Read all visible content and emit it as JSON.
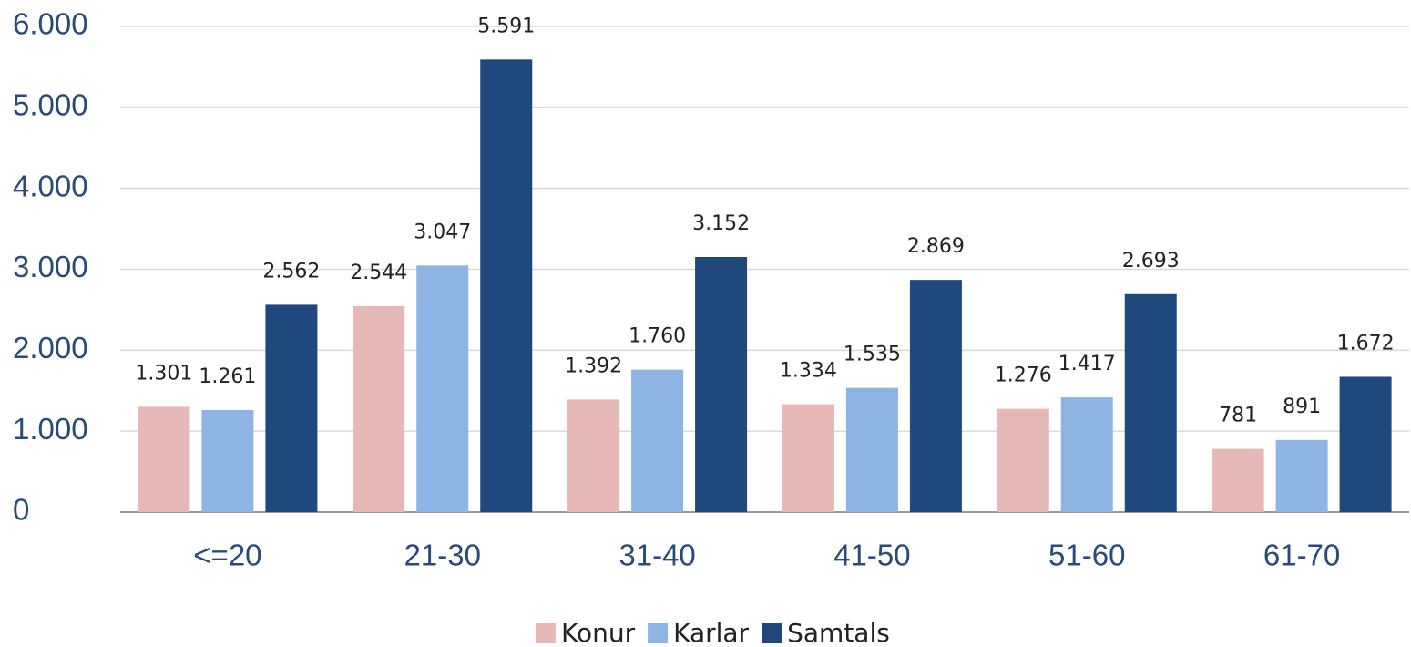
{
  "chart_data": {
    "type": "bar",
    "categories": [
      "<=20",
      "21-30",
      "31-40",
      "41-50",
      "51-60",
      "61-70"
    ],
    "series": [
      {
        "name": "Konur",
        "color": "#e6b8b7",
        "values": [
          1301,
          2544,
          1392,
          1334,
          1276,
          781
        ],
        "value_labels": [
          "1.301",
          "2.544",
          "1.392",
          "1.334",
          "1.276",
          "781"
        ]
      },
      {
        "name": "Karlar",
        "color": "#8db4e2",
        "values": [
          1261,
          3047,
          1760,
          1535,
          1417,
          891
        ],
        "value_labels": [
          "1.261",
          "3.047",
          "1.760",
          "1.535",
          "1.417",
          "891"
        ]
      },
      {
        "name": "Samtals",
        "color": "#1f497d",
        "values": [
          2562,
          5591,
          3152,
          2869,
          2693,
          1672
        ],
        "value_labels": [
          "2.562",
          "5.591",
          "3.152",
          "2.869",
          "2.693",
          "1.672"
        ]
      }
    ],
    "ylim": [
      0,
      6000
    ],
    "yticks": [
      {
        "value": 0,
        "label": "0"
      },
      {
        "value": 1000,
        "label": "1.000"
      },
      {
        "value": 2000,
        "label": "2.000"
      },
      {
        "value": 3000,
        "label": "3.000"
      },
      {
        "value": 4000,
        "label": "4.000"
      },
      {
        "value": 5000,
        "label": "5.000"
      },
      {
        "value": 6000,
        "label": "6.000"
      }
    ],
    "grid": true,
    "legend": "bottom"
  }
}
